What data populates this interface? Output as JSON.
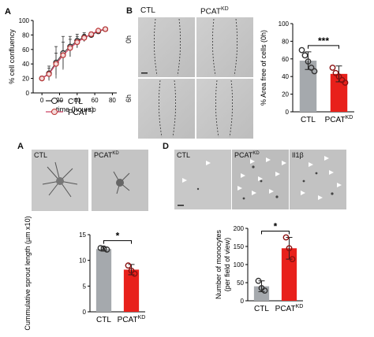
{
  "panels": {
    "A_top": {
      "letter": "A",
      "chart_data": {
        "type": "line",
        "xlabel": "time (hours)",
        "ylabel": "% cell confluency",
        "xlim": [
          -10,
          85
        ],
        "ylim": [
          0,
          100
        ],
        "xticks": [
          "0",
          "20",
          "40",
          "60",
          "80"
        ],
        "yticks": [
          "0",
          "20",
          "40",
          "60",
          "80",
          "100"
        ],
        "series": [
          {
            "name": "CTL",
            "color": "#333333",
            "x": [
              0,
              8,
              16,
              24,
              32,
              40,
              48,
              56,
              64,
              72
            ],
            "y": [
              20,
              27,
              42,
              55,
              64,
              72,
              77,
              80,
              85,
              88
            ],
            "err": [
              3,
              10,
              22,
              23,
              14,
              9,
              6,
              4,
              3,
              2
            ]
          },
          {
            "name": "PCAT",
            "sup": "KD",
            "color": "#d44",
            "x": [
              0,
              8,
              16,
              24,
              32,
              40,
              48,
              56,
              64,
              72
            ],
            "y": [
              20,
              26,
              40,
              52,
              62,
              70,
              76,
              81,
              86,
              88
            ],
            "err": [
              3,
              8,
              15,
              18,
              12,
              8,
              5,
              3,
              2,
              2
            ]
          }
        ]
      }
    },
    "B_top": {
      "letter": "B",
      "col_labels": [
        "CTL",
        "PCAT"
      ],
      "col_sup": "KD",
      "row_labels": [
        "0h",
        "6h"
      ],
      "chart_data": {
        "type": "bar",
        "categories": [
          "CTL",
          "PCAT"
        ],
        "category_sup": [
          "",
          "KD"
        ],
        "values": [
          58,
          43
        ],
        "errors": [
          10,
          9
        ],
        "points": [
          [
            70,
            64,
            57,
            50,
            46
          ],
          [
            50,
            44,
            40,
            36,
            33
          ]
        ],
        "colors": [
          "#a5a9ad",
          "#e8201b"
        ],
        "ylabel": "% Area free of cells (0h)",
        "ylim": [
          0,
          100
        ],
        "yticks": [
          "0",
          "20",
          "40",
          "60",
          "80",
          "100"
        ],
        "significance": "***"
      }
    },
    "A_bottom": {
      "letter": "A",
      "image_labels": [
        "CTL",
        "PCAT"
      ],
      "image_sup": "KD",
      "chart_data": {
        "type": "bar",
        "categories": [
          "CTL",
          "PCAT"
        ],
        "category_sup": [
          "",
          "KD"
        ],
        "values": [
          12.2,
          8.2
        ],
        "errors": [
          0.4,
          1.0
        ],
        "points": [
          [
            12.4,
            12.3,
            12.1
          ],
          [
            9.0,
            8.0,
            7.4
          ]
        ],
        "colors": [
          "#a5a9ad",
          "#e8201b"
        ],
        "ylabel": "Cummulative sprout length (µm x10)",
        "ylim": [
          0,
          15
        ],
        "yticks": [
          "0",
          "5",
          "10",
          "15"
        ],
        "significance": "*"
      }
    },
    "D_bottom": {
      "letter": "D",
      "image_labels": [
        "CTL",
        "PCAT",
        "Il1β"
      ],
      "image_sup": "KD",
      "chart_data": {
        "type": "bar",
        "categories": [
          "CTL",
          "PCAT"
        ],
        "category_sup": [
          "",
          "KD"
        ],
        "values": [
          40,
          145
        ],
        "errors": [
          15,
          30
        ],
        "points": [
          [
            55,
            35,
            28
          ],
          [
            175,
            145,
            115
          ]
        ],
        "colors": [
          "#a5a9ad",
          "#e8201b"
        ],
        "ylabel": "Number of monocytes",
        "ylabel2": "(per field of view)",
        "ylim": [
          0,
          200
        ],
        "yticks": [
          "0",
          "50",
          "100",
          "150",
          "200"
        ],
        "significance": "*"
      }
    }
  }
}
